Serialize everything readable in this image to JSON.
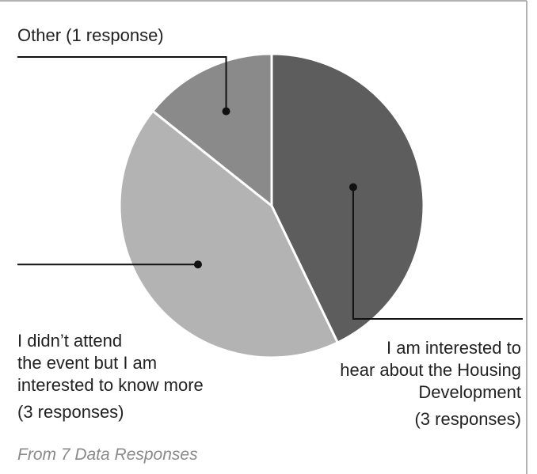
{
  "chart_data": {
    "type": "pie",
    "slices": [
      {
        "label_lines": [
          "I am interested to",
          "hear about the Housing",
          "Development"
        ],
        "count_text": "(3 responses)",
        "value": 3,
        "color": "#5d5d5d"
      },
      {
        "label_lines": [
          "I didn’t attend",
          "the event but I am",
          "interested to know more"
        ],
        "count_text": "(3 responses)",
        "value": 3,
        "color": "#b3b3b3"
      },
      {
        "label_lines": [
          "Other (1 response)"
        ],
        "count_text": "",
        "value": 1,
        "color": "#8a8a8a"
      }
    ],
    "total": 7,
    "start_angle_deg": 0,
    "direction": "clockwise",
    "legend": "callouts",
    "footnote": "From 7 Data Responses"
  }
}
